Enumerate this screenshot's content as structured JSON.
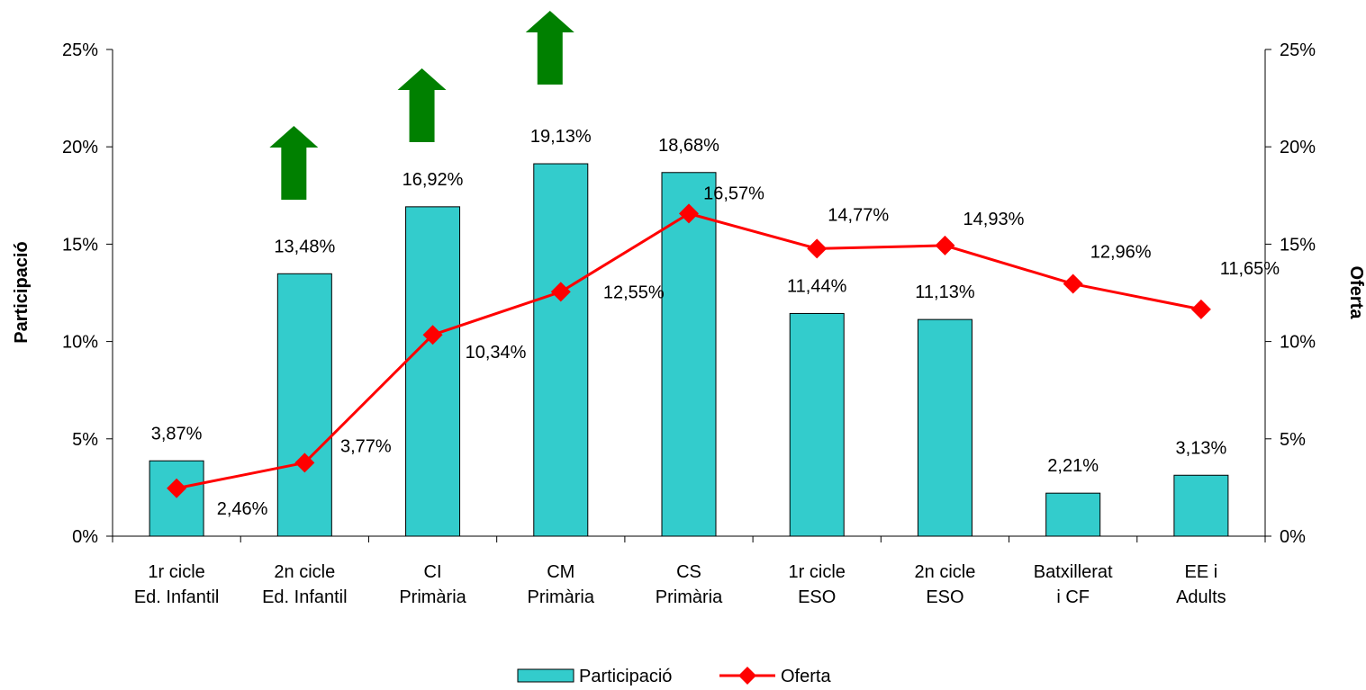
{
  "chart_data": {
    "type": "bar_line",
    "categories": [
      "1r cicle\nEd. Infantil",
      "2n cicle\nEd. Infantil",
      "CI\nPrimària",
      "CM\nPrimària",
      "CS\nPrimària",
      "1r cicle\nESO",
      "2n cicle\nESO",
      "Batxillerat\ni CF",
      "EE i\nAdults"
    ],
    "series": [
      {
        "name": "Participació",
        "type": "bar",
        "color": "#33cccc",
        "axis": "y",
        "values": [
          3.87,
          13.48,
          16.92,
          19.13,
          18.68,
          11.44,
          11.13,
          2.21,
          3.13
        ],
        "value_labels": [
          "3,87%",
          "13,48%",
          "16,92%",
          "19,13%",
          "18,68%",
          "11,44%",
          "11,13%",
          "2,21%",
          "3,13%"
        ]
      },
      {
        "name": "Oferta",
        "type": "line",
        "color": "#ff0000",
        "axis": "y2",
        "values": [
          2.46,
          3.77,
          10.34,
          12.55,
          16.57,
          14.77,
          14.93,
          12.96,
          11.65
        ],
        "value_labels": [
          "2,46%",
          "3,77%",
          "10,34%",
          "12,55%",
          "16,57%",
          "14,77%",
          "14,93%",
          "12,96%",
          "11,65%"
        ]
      }
    ],
    "ylabel": "Participació",
    "y2label": "Oferta",
    "ylim": [
      0,
      25
    ],
    "yticks": [
      {
        "value": 0,
        "label": "0%"
      },
      {
        "value": 5,
        "label": "5%"
      },
      {
        "value": 10,
        "label": "10%"
      },
      {
        "value": 15,
        "label": "15%"
      },
      {
        "value": 20,
        "label": "20%"
      },
      {
        "value": 25,
        "label": "25%"
      }
    ],
    "y2lim": [
      0,
      25
    ],
    "y2ticks": [
      {
        "value": 0,
        "label": "0%"
      },
      {
        "value": 5,
        "label": "5%"
      },
      {
        "value": 10,
        "label": "10%"
      },
      {
        "value": 15,
        "label": "15%"
      },
      {
        "value": 20,
        "label": "20%"
      },
      {
        "value": 25,
        "label": "25%"
      }
    ],
    "grid": false,
    "legend": "bottom"
  }
}
